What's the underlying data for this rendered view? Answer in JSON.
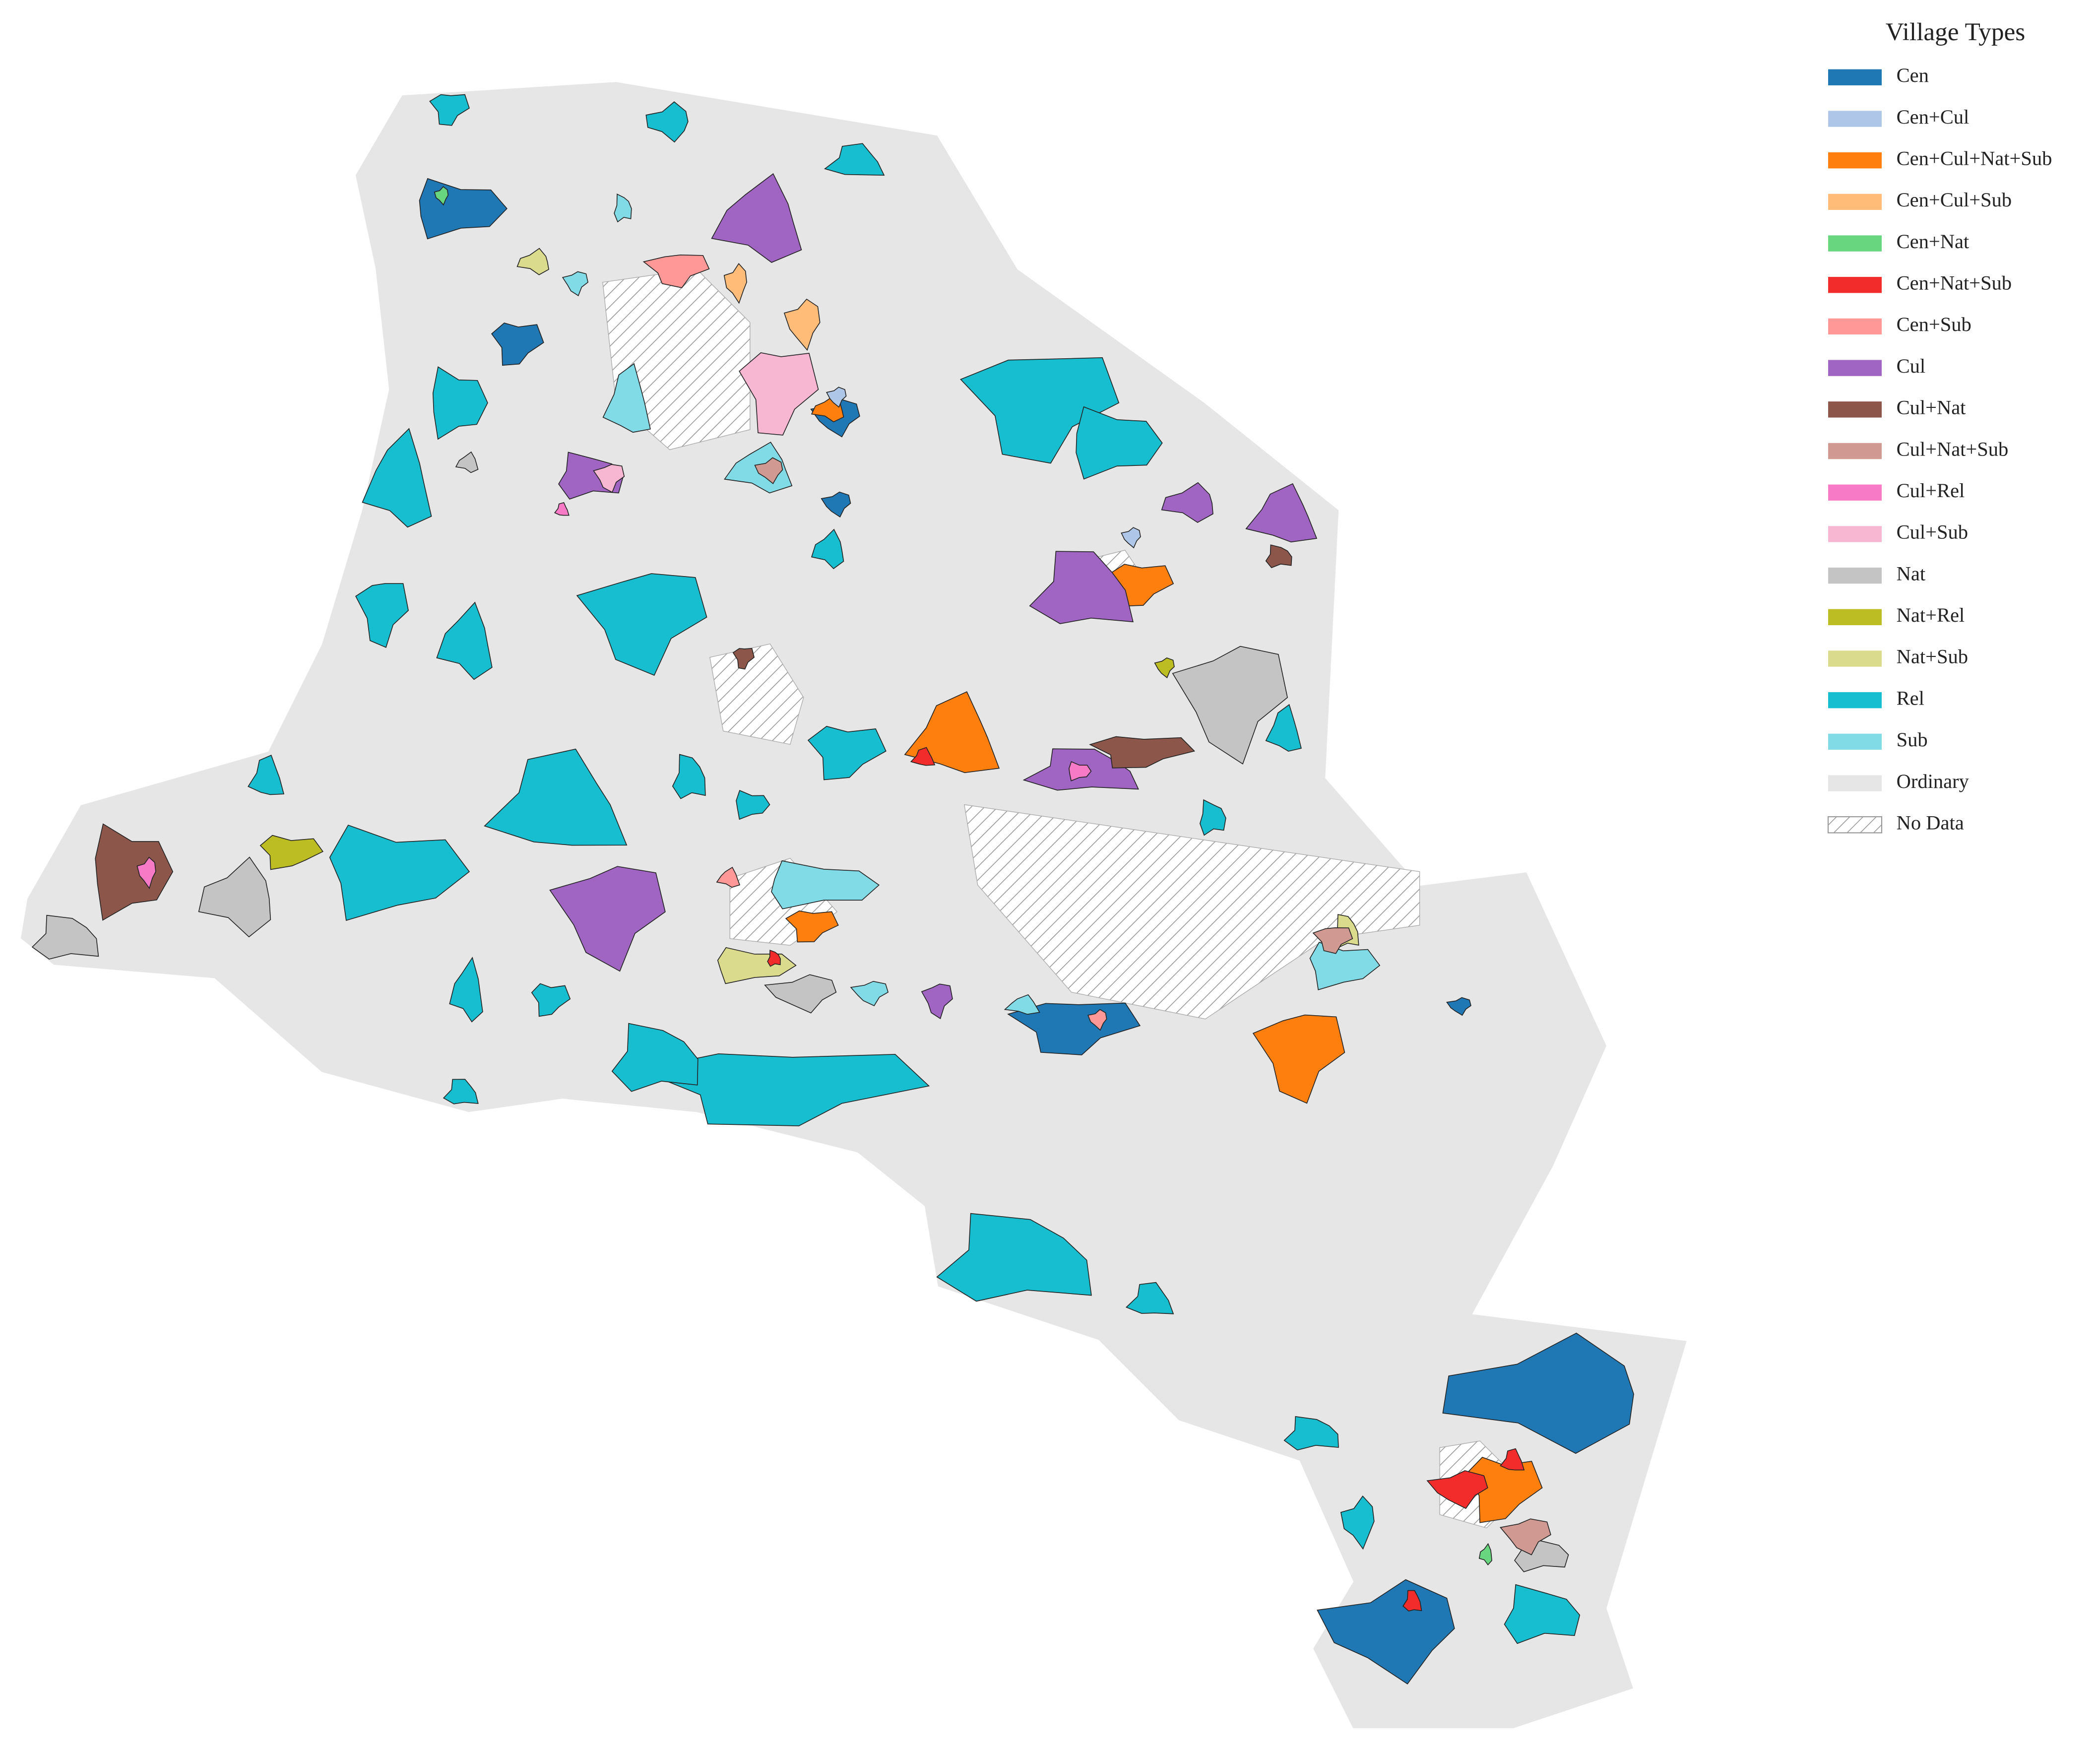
{
  "legend": {
    "title": "Village Types",
    "items": [
      {
        "label": "Cen",
        "color": "#1f77b4"
      },
      {
        "label": "Cen+Cul",
        "color": "#aec7e8"
      },
      {
        "label": "Cen+Cul+Nat+Sub",
        "color": "#ff7f0e"
      },
      {
        "label": "Cen+Cul+Sub",
        "color": "#ffbb78"
      },
      {
        "label": "Cen+Nat",
        "color": "#67d67f"
      },
      {
        "label": "Cen+Nat+Sub",
        "color": "#f22b2b"
      },
      {
        "label": "Cen+Sub",
        "color": "#ff9896"
      },
      {
        "label": "Cul",
        "color": "#a064c2"
      },
      {
        "label": "Cul+Nat",
        "color": "#8c564b"
      },
      {
        "label": "Cul+Nat+Sub",
        "color": "#d09a92"
      },
      {
        "label": "Cul+Rel",
        "color": "#f77ac6"
      },
      {
        "label": "Cul+Sub",
        "color": "#f7b6d2"
      },
      {
        "label": "Nat",
        "color": "#c4c4c4"
      },
      {
        "label": "Nat+Rel",
        "color": "#bcbd22"
      },
      {
        "label": "Nat+Sub",
        "color": "#dbdb8d"
      },
      {
        "label": "Rel",
        "color": "#17becf"
      },
      {
        "label": "Sub",
        "color": "#80dbe6"
      },
      {
        "label": "Ordinary",
        "color": "#e6e6e6"
      },
      {
        "label": "No Data",
        "color": "#ffffff",
        "hatch": true
      }
    ]
  }
}
